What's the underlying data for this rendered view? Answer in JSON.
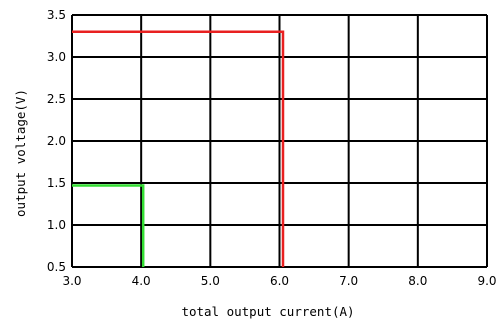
{
  "chart_data": {
    "type": "line",
    "title": "",
    "xlabel": "total output current(A)",
    "ylabel": "output voltage(V)",
    "xlim": [
      3.0,
      9.0
    ],
    "ylim": [
      0.5,
      3.5
    ],
    "x_ticks": [
      "3.0",
      "4.0",
      "5.0",
      "6.0",
      "7.0",
      "8.0",
      "9.0"
    ],
    "y_ticks": [
      "0.5",
      "1.0",
      "1.5",
      "2.0",
      "2.5",
      "3.0",
      "3.5"
    ],
    "grid": true,
    "legend": "none",
    "series": [
      {
        "color": "#e82020",
        "points": [
          [
            3.0,
            3.3
          ],
          [
            6.05,
            3.3
          ],
          [
            6.05,
            0.5
          ]
        ]
      },
      {
        "color": "#33dd33",
        "points": [
          [
            3.0,
            1.47
          ],
          [
            4.03,
            1.47
          ],
          [
            4.03,
            0.5
          ]
        ]
      }
    ]
  }
}
